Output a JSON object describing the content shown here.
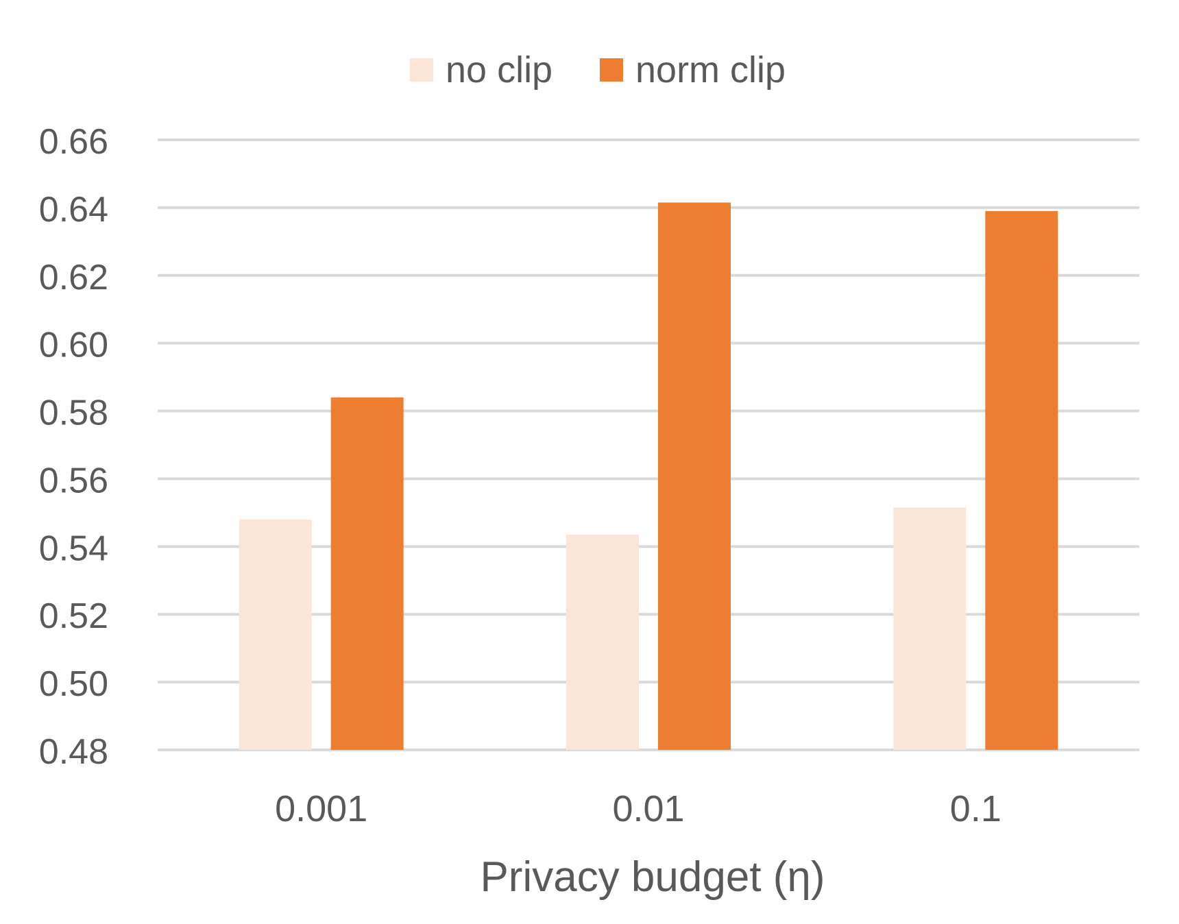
{
  "chart_data": {
    "type": "bar",
    "title": "",
    "xlabel": "Privacy budget (η)",
    "ylabel": "",
    "categories": [
      "0.001",
      "0.01",
      "0.1"
    ],
    "series": [
      {
        "name": "no clip",
        "color": "#FBE5D6",
        "values": [
          0.548,
          0.5435,
          0.5515
        ]
      },
      {
        "name": "norm clip",
        "color": "#ED7D31",
        "values": [
          0.584,
          0.6415,
          0.639
        ]
      }
    ],
    "ylim": [
      0.48,
      0.66
    ],
    "y_ticks": [
      "0.48",
      "0.50",
      "0.52",
      "0.54",
      "0.56",
      "0.58",
      "0.60",
      "0.62",
      "0.64",
      "0.66"
    ],
    "grid": true,
    "legend": "top-center"
  }
}
